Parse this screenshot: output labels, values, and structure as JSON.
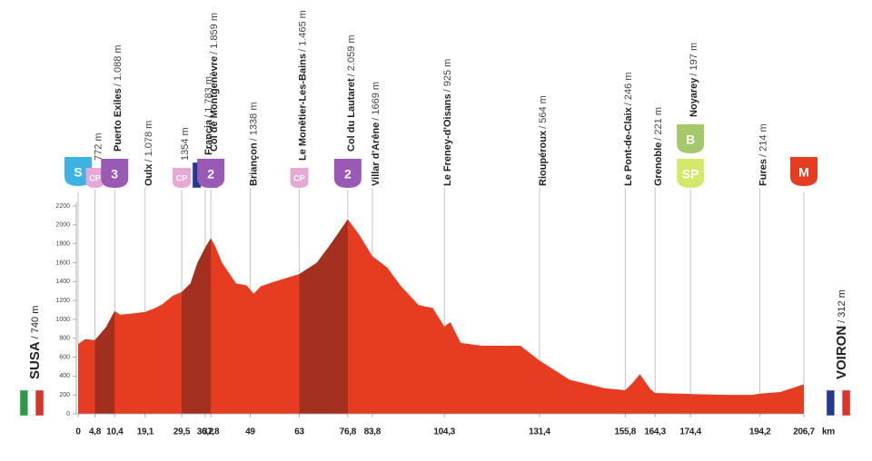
{
  "chart_data": {
    "type": "area",
    "x": [
      0,
      2,
      4.8,
      8,
      10.4,
      12,
      15,
      19.1,
      22,
      24,
      27,
      29.5,
      32,
      34,
      36.2,
      37.8,
      39,
      41,
      45,
      48,
      50,
      52,
      56,
      63,
      68,
      72,
      76.8,
      80,
      83.8,
      88,
      92,
      97,
      101,
      104.3,
      106,
      109,
      115,
      126,
      131.4,
      140,
      150,
      155.8,
      158,
      160,
      163,
      164.3,
      174.4,
      185,
      192,
      194.2,
      200,
      206.7
    ],
    "values": [
      740,
      790,
      780,
      920,
      1088,
      1050,
      1060,
      1078,
      1120,
      1160,
      1250,
      1290,
      1380,
      1600,
      1760,
      1859,
      1780,
      1600,
      1380,
      1360,
      1270,
      1350,
      1400,
      1480,
      1600,
      1800,
      2059,
      1900,
      1669,
      1550,
      1350,
      1150,
      1120,
      925,
      970,
      750,
      720,
      720,
      564,
      360,
      270,
      250,
      330,
      420,
      260,
      221,
      210,
      200,
      200,
      214,
      230,
      312
    ],
    "color": "#e63c22",
    "climb_color": "#a3301f",
    "climbs": [
      [
        4.8,
        10.4
      ],
      [
        29.5,
        37.8
      ],
      [
        63,
        76.8
      ]
    ],
    "ylim": [
      0,
      2200
    ],
    "yticks": [
      0,
      200,
      400,
      600,
      800,
      1000,
      1200,
      1400,
      1600,
      1800,
      2000,
      2200
    ],
    "xlim": [
      0,
      206.7
    ],
    "xticks": [
      0,
      {
        "value": 4.8,
        "label": "4,8"
      },
      {
        "value": 10.4,
        "label": "10,4"
      },
      {
        "value": 19.1,
        "label": "19,1"
      },
      {
        "value": 29.5,
        "label": "29,5"
      },
      {
        "value": 36.2,
        "label": "36,2"
      },
      {
        "value": 37.8,
        "label": "37,8"
      },
      49,
      63,
      {
        "value": 76.8,
        "label": "76,8"
      },
      {
        "value": 83.8,
        "label": "83,8"
      },
      {
        "value": 104.3,
        "label": "104,3"
      },
      {
        "value": 131.4,
        "label": "131,4"
      },
      {
        "value": 155.8,
        "label": "155,8"
      },
      {
        "value": 164.3,
        "label": "164,3"
      },
      {
        "value": 174.4,
        "label": "174,4"
      },
      {
        "value": 194.2,
        "label": "194,2"
      },
      {
        "value": 206.7,
        "label": "206,7"
      }
    ],
    "x_unit": "km",
    "waypoints": [
      {
        "name": "SUSA",
        "elevation": "/ 740 m",
        "badges": [
          {
            "text": "S",
            "color": "#3db3e3"
          }
        ],
        "flag": "italy"
      },
      {
        "elevation": "772 m",
        "badges": [
          {
            "text": "CP",
            "color": "#e7a8d6"
          }
        ]
      },
      {
        "name": "Puerto Exiles",
        "elevation": "/ 1.088 m",
        "badges": [
          {
            "text": "3",
            "color": "#9a59b5"
          }
        ]
      },
      {
        "name": "Oulx",
        "elevation": "/ 1.078 m",
        "badges": []
      },
      {
        "elevation": "1354 m",
        "badges": [
          {
            "text": "CP",
            "color": "#e7a8d6"
          }
        ]
      },
      {
        "name": "Francia",
        "elevation": "/ 1.783 m",
        "badges": [],
        "flag": "france"
      },
      {
        "name": "Col de Montgenèvre",
        "elevation": "/ 1.859 m",
        "badges": [
          {
            "text": "2",
            "color": "#9a59b5"
          }
        ]
      },
      {
        "name": "Briançon",
        "elevation": "/ 1338 m",
        "badges": []
      },
      {
        "name": "Le Monêtier-Les-Bains",
        "elevation": "/ 1.465 m",
        "badges": [
          {
            "text": "CP",
            "color": "#e7a8d6"
          }
        ]
      },
      {
        "name": "Col du Lautaret",
        "elevation": "/ 2.059 m",
        "badges": [
          {
            "text": "2",
            "color": "#9a59b5"
          }
        ]
      },
      {
        "name": "Villar d'Arêne",
        "elevation": "/ 1669 m",
        "badges": []
      },
      {
        "name": "Le Freney-d'Oisans",
        "elevation": "/ 925 m",
        "badges": []
      },
      {
        "name": "Rioupéroux",
        "elevation": "/ 564 m",
        "badges": []
      },
      {
        "name": "Le Pont-de-Claix",
        "elevation": "/ 246 m",
        "badges": []
      },
      {
        "name": "Grenoble",
        "elevation": "/ 221 m",
        "badges": []
      },
      {
        "name": "Noyarey",
        "elevation": "/ 197 m",
        "badges": [
          {
            "text": "B",
            "color": "#a5c86a"
          },
          {
            "text": "SP",
            "color": "#d6e86a"
          }
        ]
      },
      {
        "name": "Fures",
        "elevation": "/ 214 m",
        "badges": []
      },
      {
        "name": "VOIRON",
        "elevation": "/ 312 m",
        "badges": [
          {
            "text": "M",
            "color": "#e63c22"
          }
        ],
        "flag": "france"
      }
    ]
  }
}
